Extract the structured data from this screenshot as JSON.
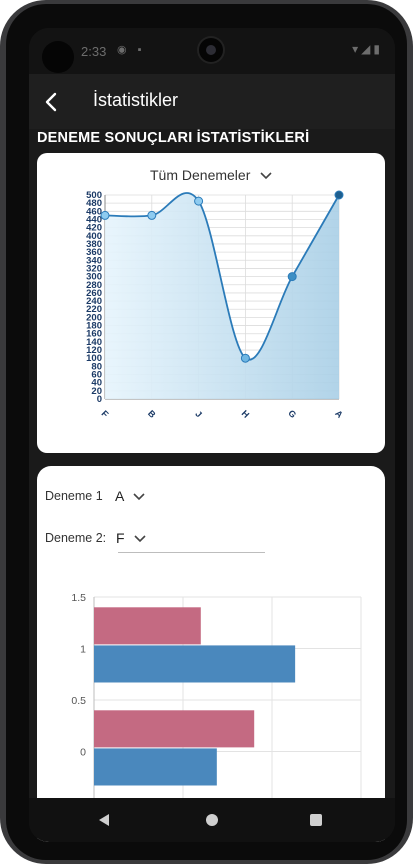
{
  "status": {
    "time": "2:33",
    "left_icons": "◉ ▪",
    "right_icons": "▾◢▮"
  },
  "appbar": {
    "title": "İstatistikler"
  },
  "section": {
    "title": "DENEME SONUÇLARI İSTATİSTİKLERİ"
  },
  "filter": {
    "selected": "Tüm Denemeler"
  },
  "compare": {
    "label1": "Deneme 1",
    "value1": "A",
    "label2": "Deneme 2:",
    "value2": "F"
  },
  "colors": {
    "line": "#2b7bb9",
    "marker": "#8ecbf0",
    "bar_pink": "#c46a82",
    "bar_blue": "#4a88bd"
  },
  "chart_data": [
    {
      "type": "area",
      "categories": [
        "F",
        "B",
        "J",
        "H",
        "G",
        "A"
      ],
      "values": [
        450,
        450,
        485,
        100,
        300,
        500
      ],
      "ylim": [
        0,
        500
      ],
      "yticks": [
        0,
        20,
        40,
        60,
        80,
        100,
        120,
        140,
        160,
        180,
        200,
        220,
        240,
        260,
        280,
        300,
        320,
        340,
        360,
        380,
        400,
        420,
        440,
        460,
        480,
        500
      ],
      "grid": true
    },
    {
      "type": "bar",
      "orientation": "horizontal",
      "categories": [
        0,
        1
      ],
      "series": [
        {
          "values": [
            90,
            60
          ]
        },
        {
          "values": [
            69,
            113
          ]
        }
      ],
      "xlim": [
        0,
        150
      ],
      "ylim": [
        -0.5,
        1.5
      ],
      "xticks": [
        0,
        50,
        100,
        150
      ],
      "yticks": [
        -0.5,
        0,
        0.5,
        1,
        1.5
      ],
      "grid": true
    }
  ]
}
